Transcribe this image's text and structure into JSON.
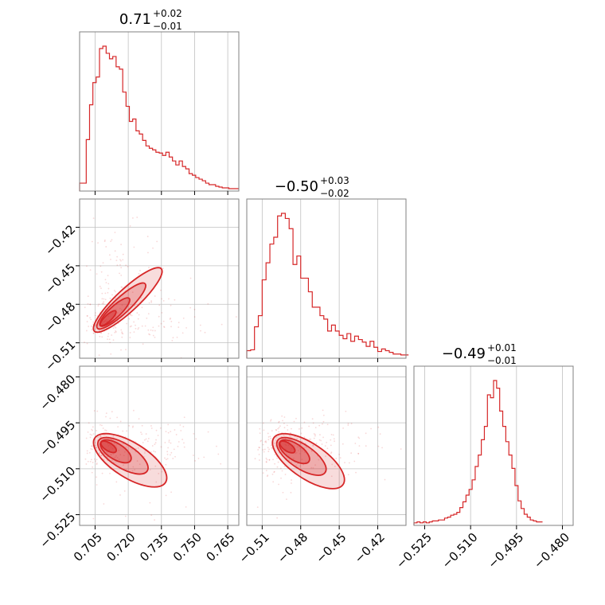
{
  "chart_data": {
    "type": "corner",
    "color": "#d62728",
    "parameters": [
      {
        "title": {
          "median": "0.71",
          "plus": "+0.02",
          "minus": "−0.01"
        },
        "range": [
          0.698,
          0.77
        ],
        "ticks": [
          0.705,
          0.72,
          0.735,
          0.75,
          0.765
        ],
        "tick_labels": [
          "0.705",
          "0.720",
          "0.735",
          "0.750",
          "0.765"
        ],
        "histogram": {
          "edges_start": 0.698,
          "bin_width": 0.0015,
          "counts": [
            8,
            8,
            63,
            107,
            135,
            142,
            178,
            181,
            172,
            165,
            168,
            155,
            152,
            123,
            105,
            86,
            89,
            74,
            70,
            62,
            55,
            52,
            50,
            47,
            46,
            43,
            47,
            41,
            36,
            31,
            36,
            29,
            26,
            20,
            18,
            15,
            13,
            11,
            8,
            6,
            6,
            4,
            3,
            2,
            2,
            1,
            1,
            1
          ]
        }
      },
      {
        "title": {
          "median": "−0.50",
          "plus": "+0.03",
          "minus": "−0.02"
        },
        "range": [
          -0.522,
          -0.398
        ],
        "ticks": [
          -0.51,
          -0.48,
          -0.45,
          -0.42
        ],
        "tick_labels": [
          "−0.51",
          "−0.48",
          "−0.45",
          "−0.42"
        ],
        "histogram": {
          "edges_start": -0.522,
          "bin_width": 0.003,
          "counts": [
            7,
            8,
            35,
            48,
            90,
            110,
            132,
            140,
            165,
            168,
            162,
            150,
            108,
            118,
            92,
            92,
            76,
            58,
            58,
            48,
            44,
            30,
            37,
            30,
            25,
            21,
            27,
            18,
            24,
            20,
            17,
            12,
            18,
            11,
            6,
            9,
            7,
            5,
            3,
            3,
            2,
            2
          ]
        }
      },
      {
        "title": {
          "median": "−0.49",
          "plus": "+0.01",
          "minus": "−0.01"
        },
        "range": [
          -0.5285,
          -0.4765
        ],
        "ticks": [
          -0.525,
          -0.51,
          -0.495,
          -0.48
        ],
        "tick_labels": [
          "−0.525",
          "−0.510",
          "−0.495",
          "−0.480"
        ],
        "histogram": {
          "edges_start": -0.5285,
          "bin_width": 0.001,
          "counts": [
            1,
            2,
            1,
            2,
            1,
            2,
            3,
            3,
            4,
            4,
            6,
            7,
            9,
            10,
            12,
            17,
            23,
            30,
            36,
            46,
            60,
            72,
            88,
            102,
            135,
            132,
            150,
            142,
            118,
            102,
            86,
            72,
            58,
            40,
            24,
            16,
            10,
            7,
            4,
            3,
            2,
            2
          ]
        }
      }
    ],
    "pairs": [
      {
        "x": 0,
        "y": 1,
        "slope": 1.5,
        "contour_scale": 1.0
      },
      {
        "x": 0,
        "y": 2,
        "slope": -0.42,
        "contour_scale": 1.0
      },
      {
        "x": 1,
        "y": 2,
        "slope": -0.28,
        "contour_scale": 1.0
      }
    ]
  }
}
